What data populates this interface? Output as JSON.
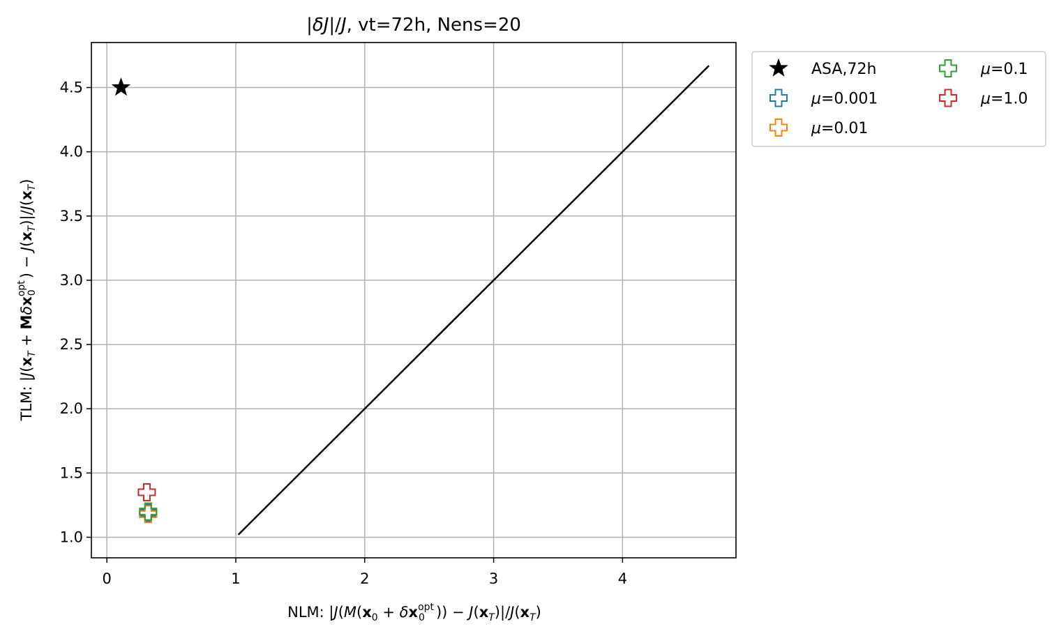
{
  "chart_data": {
    "type": "scatter",
    "title": "|δJ|/J, vt=72h, Nens=20",
    "xlim": [
      -0.12,
      4.88
    ],
    "ylim": [
      0.84,
      4.85
    ],
    "xticks": [
      0,
      1,
      2,
      3,
      4
    ],
    "yticks": [
      1.0,
      1.5,
      2.0,
      2.5,
      3.0,
      3.5,
      4.0,
      4.5
    ],
    "xtick_labels": [
      "0",
      "1",
      "2",
      "3",
      "4"
    ],
    "ytick_labels": [
      "1.0",
      "1.5",
      "2.0",
      "2.5",
      "3.0",
      "3.5",
      "4.0",
      "4.5"
    ],
    "grid": true,
    "legend": {
      "placement": "outside-right-top",
      "ncol": 2
    },
    "reference_line": {
      "color": "#000000",
      "x": [
        1.02,
        4.67
      ],
      "y": [
        1.02,
        4.67
      ]
    },
    "series": [
      {
        "name": "ASA,72h",
        "marker": "star",
        "color": "#000000",
        "filled": true,
        "x": [
          0.11
        ],
        "y": [
          4.5
        ]
      },
      {
        "name": "μ=0.001",
        "marker": "plus",
        "color": "#1f77b4",
        "filled": false,
        "x": [
          0.32
        ],
        "y": [
          1.19
        ]
      },
      {
        "name": "μ=0.01",
        "marker": "plus",
        "color": "#ff7f0e",
        "filled": false,
        "x": [
          0.32
        ],
        "y": [
          1.18
        ]
      },
      {
        "name": "μ=0.1",
        "marker": "plus",
        "color": "#2ca02c",
        "filled": false,
        "x": [
          0.32
        ],
        "y": [
          1.2
        ]
      },
      {
        "name": "μ=1.0",
        "marker": "plus",
        "color": "#d62728",
        "filled": false,
        "x": [
          0.31
        ],
        "y": [
          1.35
        ]
      }
    ]
  }
}
